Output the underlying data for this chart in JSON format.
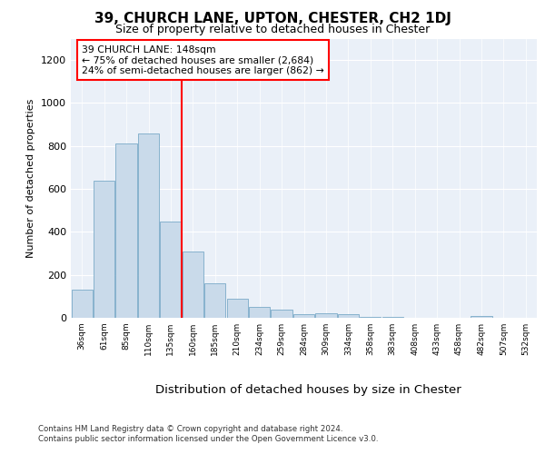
{
  "title1": "39, CHURCH LANE, UPTON, CHESTER, CH2 1DJ",
  "title2": "Size of property relative to detached houses in Chester",
  "xlabel": "Distribution of detached houses by size in Chester",
  "ylabel": "Number of detached properties",
  "categories": [
    "36sqm",
    "61sqm",
    "85sqm",
    "110sqm",
    "135sqm",
    "160sqm",
    "185sqm",
    "210sqm",
    "234sqm",
    "259sqm",
    "284sqm",
    "309sqm",
    "334sqm",
    "358sqm",
    "383sqm",
    "408sqm",
    "433sqm",
    "458sqm",
    "482sqm",
    "507sqm",
    "532sqm"
  ],
  "values": [
    130,
    640,
    810,
    860,
    450,
    310,
    160,
    90,
    50,
    40,
    15,
    20,
    18,
    5,
    3,
    2,
    2,
    1,
    8,
    1,
    0
  ],
  "bar_color": "#c9daea",
  "bar_edge_color": "#7aaac8",
  "vline_x": 4.5,
  "vline_color": "red",
  "annotation_box_text": "39 CHURCH LANE: 148sqm\n← 75% of detached houses are smaller (2,684)\n24% of semi-detached houses are larger (862) →",
  "ylim": [
    0,
    1300
  ],
  "yticks": [
    0,
    200,
    400,
    600,
    800,
    1000,
    1200
  ],
  "footer_text": "Contains HM Land Registry data © Crown copyright and database right 2024.\nContains public sector information licensed under the Open Government Licence v3.0.",
  "bg_color": "#ffffff",
  "plot_bg_color": "#eaf0f8"
}
